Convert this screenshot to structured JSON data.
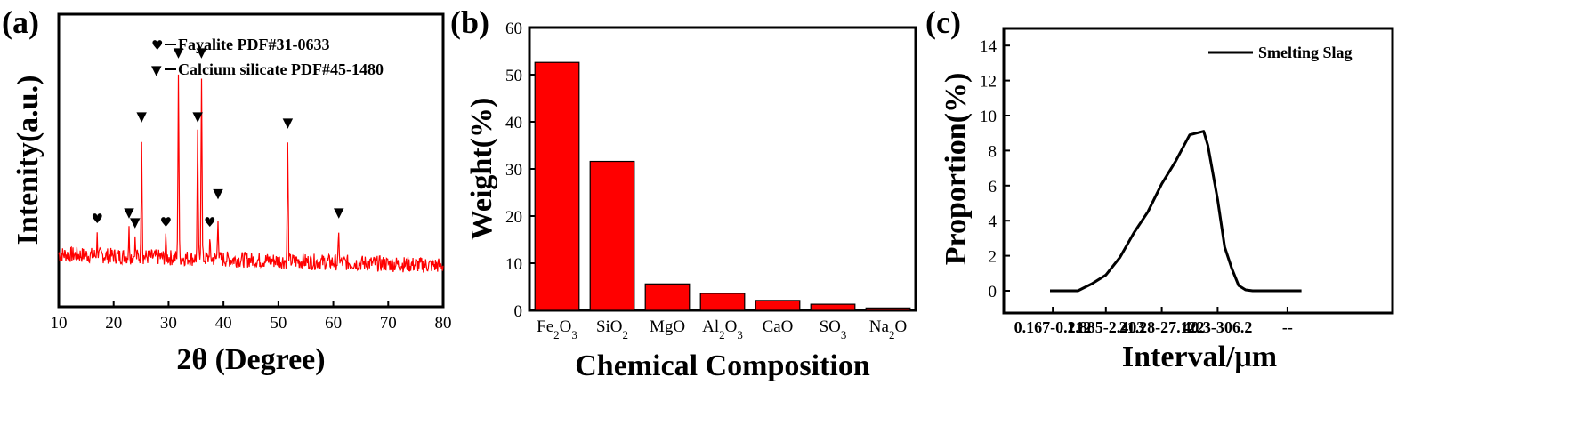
{
  "chart_data": [
    {
      "panel_label": "(a)",
      "type": "line",
      "xlabel": "2θ (Degree)",
      "ylabel": "Intenity(a.u.)",
      "xlim": [
        10,
        80
      ],
      "xticks": [
        "10",
        "20",
        "30",
        "40",
        "50",
        "60",
        "70",
        "80"
      ],
      "color": "#ff0000",
      "baseline": 10,
      "noise_amplitude": 2.5,
      "peaks": [
        {
          "x": 17.0,
          "y": 6
        },
        {
          "x": 22.8,
          "y": 8
        },
        {
          "x": 23.9,
          "y": 5
        },
        {
          "x": 25.1,
          "y": 38
        },
        {
          "x": 29.5,
          "y": 5
        },
        {
          "x": 31.8,
          "y": 58
        },
        {
          "x": 35.3,
          "y": 38
        },
        {
          "x": 36.0,
          "y": 58
        },
        {
          "x": 37.5,
          "y": 5
        },
        {
          "x": 39.0,
          "y": 14
        },
        {
          "x": 51.7,
          "y": 36
        },
        {
          "x": 61.0,
          "y": 8
        }
      ],
      "markers": [
        {
          "x": 17.0,
          "symbol": "♥"
        },
        {
          "x": 22.8,
          "symbol": "▼"
        },
        {
          "x": 23.9,
          "symbol": "▼"
        },
        {
          "x": 25.1,
          "symbol": "▼"
        },
        {
          "x": 29.5,
          "symbol": "♥"
        },
        {
          "x": 31.8,
          "symbol": "▼"
        },
        {
          "x": 35.3,
          "symbol": "▼"
        },
        {
          "x": 36.0,
          "symbol": "▼"
        },
        {
          "x": 37.5,
          "symbol": "♥"
        },
        {
          "x": 39.0,
          "symbol": "▼"
        },
        {
          "x": 51.7,
          "symbol": "▼"
        },
        {
          "x": 61.0,
          "symbol": "▼"
        }
      ],
      "legend": [
        {
          "symbol": "♥",
          "label": "Fayalite PDF#31-0633"
        },
        {
          "symbol": "▼",
          "label": "Calcium silicate PDF#45-1480"
        }
      ]
    },
    {
      "panel_label": "(b)",
      "type": "bar",
      "xlabel": "Chemical Composition",
      "ylabel": "Weight(%)",
      "ylim": [
        0,
        60
      ],
      "yticks": [
        0,
        10,
        20,
        30,
        40,
        50,
        60
      ],
      "color": "#ff0000",
      "categories": [
        {
          "base": "Fe",
          "sub": "2",
          "rest": "O",
          "sub2": "3"
        },
        {
          "base": "SiO",
          "sub": "2",
          "rest": "",
          "sub2": ""
        },
        {
          "base": "MgO",
          "sub": "",
          "rest": "",
          "sub2": ""
        },
        {
          "base": "Al",
          "sub": "2",
          "rest": "O",
          "sub2": "3"
        },
        {
          "base": "CaO",
          "sub": "",
          "rest": "",
          "sub2": ""
        },
        {
          "base": "SO",
          "sub": "3",
          "rest": "",
          "sub2": ""
        },
        {
          "base": "Na",
          "sub": "2",
          "rest": "O",
          "sub2": ""
        }
      ],
      "values": [
        52.6,
        31.6,
        5.6,
        3.6,
        2.1,
        1.3,
        0.5
      ]
    },
    {
      "panel_label": "(c)",
      "type": "line",
      "xlabel": "Interval/μm",
      "ylabel": "Proportion(%)",
      "ylim": [
        -1,
        15
      ],
      "yticks": [
        0,
        2,
        4,
        6,
        8,
        10,
        12,
        14
      ],
      "xtick_labels": [
        {
          "label": "0.167-0.212",
          "xi": 0.2
        },
        {
          "label": "1.885-2.403",
          "xi": 4.0
        },
        {
          "label": "21.28-27.122",
          "xi": 8.0
        },
        {
          "label": "40.3-306.2",
          "xi": 12.0
        },
        {
          "label": "--",
          "xi": 17.0
        }
      ],
      "legend": "Smelting Slag",
      "x": [
        0,
        1,
        2,
        3,
        4,
        5,
        6,
        7,
        8,
        9,
        10,
        11,
        11.3,
        12,
        12.5,
        13,
        13.5,
        14,
        14.5,
        15,
        16,
        17,
        18
      ],
      "y": [
        0,
        0,
        0,
        0.4,
        0.9,
        1.9,
        3.3,
        4.5,
        6.1,
        7.4,
        8.9,
        9.1,
        8.3,
        5.2,
        2.5,
        1.3,
        0.3,
        0.05,
        0,
        0,
        0,
        0,
        0
      ]
    }
  ]
}
